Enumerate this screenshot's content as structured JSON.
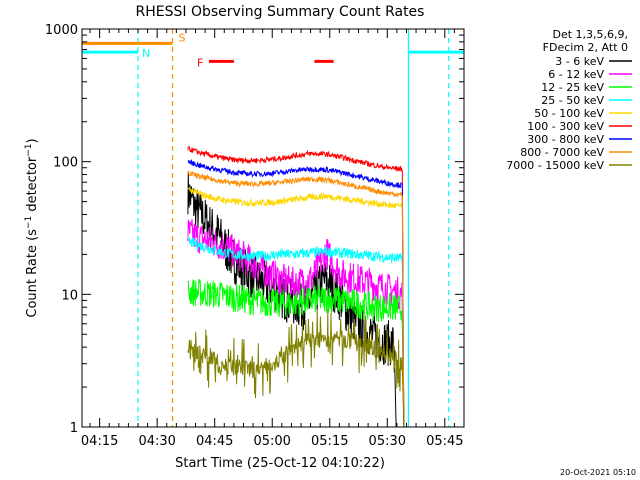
{
  "chart_data": {
    "type": "line",
    "title": "RHESSI Observing Summary Count Rates",
    "xlabel": "Start Time (25-Oct-12 04:10:22)",
    "ylabel": "Count Rate (s⁻¹ detector⁻¹)",
    "y_scale": "log",
    "ylim": [
      1,
      1000
    ],
    "xlim_minutes": [
      250.4,
      350
    ],
    "x_ticks": [
      "04:15",
      "04:30",
      "04:45",
      "05:00",
      "05:15",
      "05:30",
      "05:45"
    ],
    "x_tick_minutes": [
      255,
      270,
      285,
      300,
      315,
      330,
      345
    ],
    "y_ticks": [
      "1",
      "10",
      "100",
      "1000"
    ],
    "y_tick_values": [
      1,
      10,
      100,
      1000
    ],
    "legend_header": [
      "Det 1,3,5,6,9,",
      "FDecim 2, Att 0"
    ],
    "legend_placement": "right",
    "series": [
      {
        "name": "3 - 6 keV",
        "color": "#000000",
        "x": [
          278,
          280,
          282,
          284,
          286,
          288,
          290,
          292,
          294,
          296,
          298,
          300,
          302,
          304,
          306,
          308,
          310,
          312,
          314,
          316,
          318,
          320,
          322,
          324,
          326,
          328,
          330,
          332
        ],
        "y": [
          60,
          45,
          38,
          32,
          28,
          22,
          18,
          16,
          14,
          13,
          12,
          11,
          10,
          9,
          8.5,
          8,
          9,
          11,
          13,
          11,
          9,
          7,
          6,
          5.5,
          5,
          4.5,
          4.3,
          4.2
        ]
      },
      {
        "name": "6 - 12 keV",
        "color": "#ff00ff",
        "x": [
          278,
          282,
          286,
          290,
          294,
          298,
          302,
          306,
          310,
          312,
          314,
          316,
          318,
          322,
          326,
          330,
          334
        ],
        "y": [
          29,
          26,
          24,
          21,
          18,
          15,
          13,
          12,
          13,
          16,
          21,
          17,
          14,
          13,
          12,
          11,
          10
        ]
      },
      {
        "name": "12 - 25 keV",
        "color": "#00ff00",
        "x": [
          278,
          282,
          286,
          290,
          294,
          298,
          302,
          306,
          310,
          314,
          318,
          322,
          326,
          330,
          334
        ],
        "y": [
          10.5,
          10.2,
          10,
          9.5,
          9,
          8.7,
          8.5,
          8.6,
          9,
          9.3,
          9,
          8.5,
          8,
          8,
          7.8
        ]
      },
      {
        "name": "25 - 50 keV",
        "color": "#00ffff",
        "x": [
          278,
          282,
          286,
          290,
          294,
          298,
          302,
          306,
          310,
          314,
          318,
          322,
          326,
          330,
          334
        ],
        "y": [
          25,
          23,
          21,
          20,
          19.5,
          19.5,
          20,
          20,
          20.5,
          21,
          20.5,
          20,
          19.5,
          19,
          18.5
        ]
      },
      {
        "name": "50 - 100 keV",
        "color": "#ffd700",
        "x": [
          278,
          282,
          286,
          290,
          294,
          298,
          302,
          306,
          310,
          314,
          318,
          322,
          326,
          330,
          334
        ],
        "y": [
          62,
          56,
          52,
          50,
          49,
          49,
          50,
          52,
          54,
          55,
          53,
          51,
          49,
          47,
          46
        ]
      },
      {
        "name": "100 - 300 keV",
        "color": "#ff0000",
        "x": [
          278,
          282,
          286,
          290,
          294,
          298,
          302,
          306,
          310,
          314,
          318,
          322,
          326,
          330,
          334
        ],
        "y": [
          125,
          115,
          108,
          103,
          102,
          103,
          106,
          111,
          115,
          114,
          108,
          101,
          95,
          90,
          88
        ]
      },
      {
        "name": "300 - 800 keV",
        "color": "#0000ff",
        "x": [
          278,
          282,
          286,
          290,
          294,
          298,
          302,
          306,
          310,
          314,
          318,
          322,
          326,
          330,
          334
        ],
        "y": [
          100,
          92,
          87,
          83,
          81,
          81,
          83,
          86,
          88,
          87,
          83,
          78,
          73,
          69,
          66
        ]
      },
      {
        "name": "800 - 7000 keV",
        "color": "#ff8c00",
        "x": [
          278,
          282,
          286,
          290,
          294,
          298,
          302,
          306,
          310,
          314,
          318,
          322,
          326,
          330,
          334
        ],
        "y": [
          82,
          76,
          72,
          69,
          68,
          68,
          70,
          72,
          74,
          73,
          69,
          65,
          61,
          58,
          56
        ]
      },
      {
        "name": "7000 - 15000 keV",
        "color": "#808000",
        "x": [
          278,
          282,
          286,
          290,
          294,
          298,
          302,
          306,
          310,
          314,
          318,
          322,
          326,
          330,
          334
        ],
        "y": [
          4,
          3.5,
          3,
          2.8,
          2.7,
          2.8,
          3.2,
          4,
          4.5,
          4.7,
          4.6,
          4.3,
          4,
          3.5,
          3
        ]
      }
    ],
    "annotations": [
      {
        "label": "S",
        "color": "#ff8c00",
        "x": [
          250.4,
          274
        ],
        "y": 780
      },
      {
        "label": "N",
        "color": "#00ffff",
        "x": [
          250.4,
          265
        ],
        "y": 670
      },
      {
        "label": "N",
        "color": "#00ffff",
        "x": [
          335.5,
          350
        ],
        "y": 670
      },
      {
        "label": "F",
        "color": "#ff0000",
        "x": [
          283.5,
          290
        ],
        "y": 570
      },
      {
        "label": "F",
        "color": "#ff0000",
        "x": [
          311,
          316
        ],
        "y": 570
      }
    ],
    "vertical_markers": [
      {
        "x": 265,
        "color": "#00ffff",
        "style": "dashed"
      },
      {
        "x": 274,
        "color": "#ff8c00",
        "style": "dashed"
      },
      {
        "x": 335.5,
        "color": "#00ffff",
        "style": "solid"
      },
      {
        "x": 346,
        "color": "#00ffff",
        "style": "dashed"
      }
    ]
  },
  "footer": "20-Oct-2021 05:10"
}
